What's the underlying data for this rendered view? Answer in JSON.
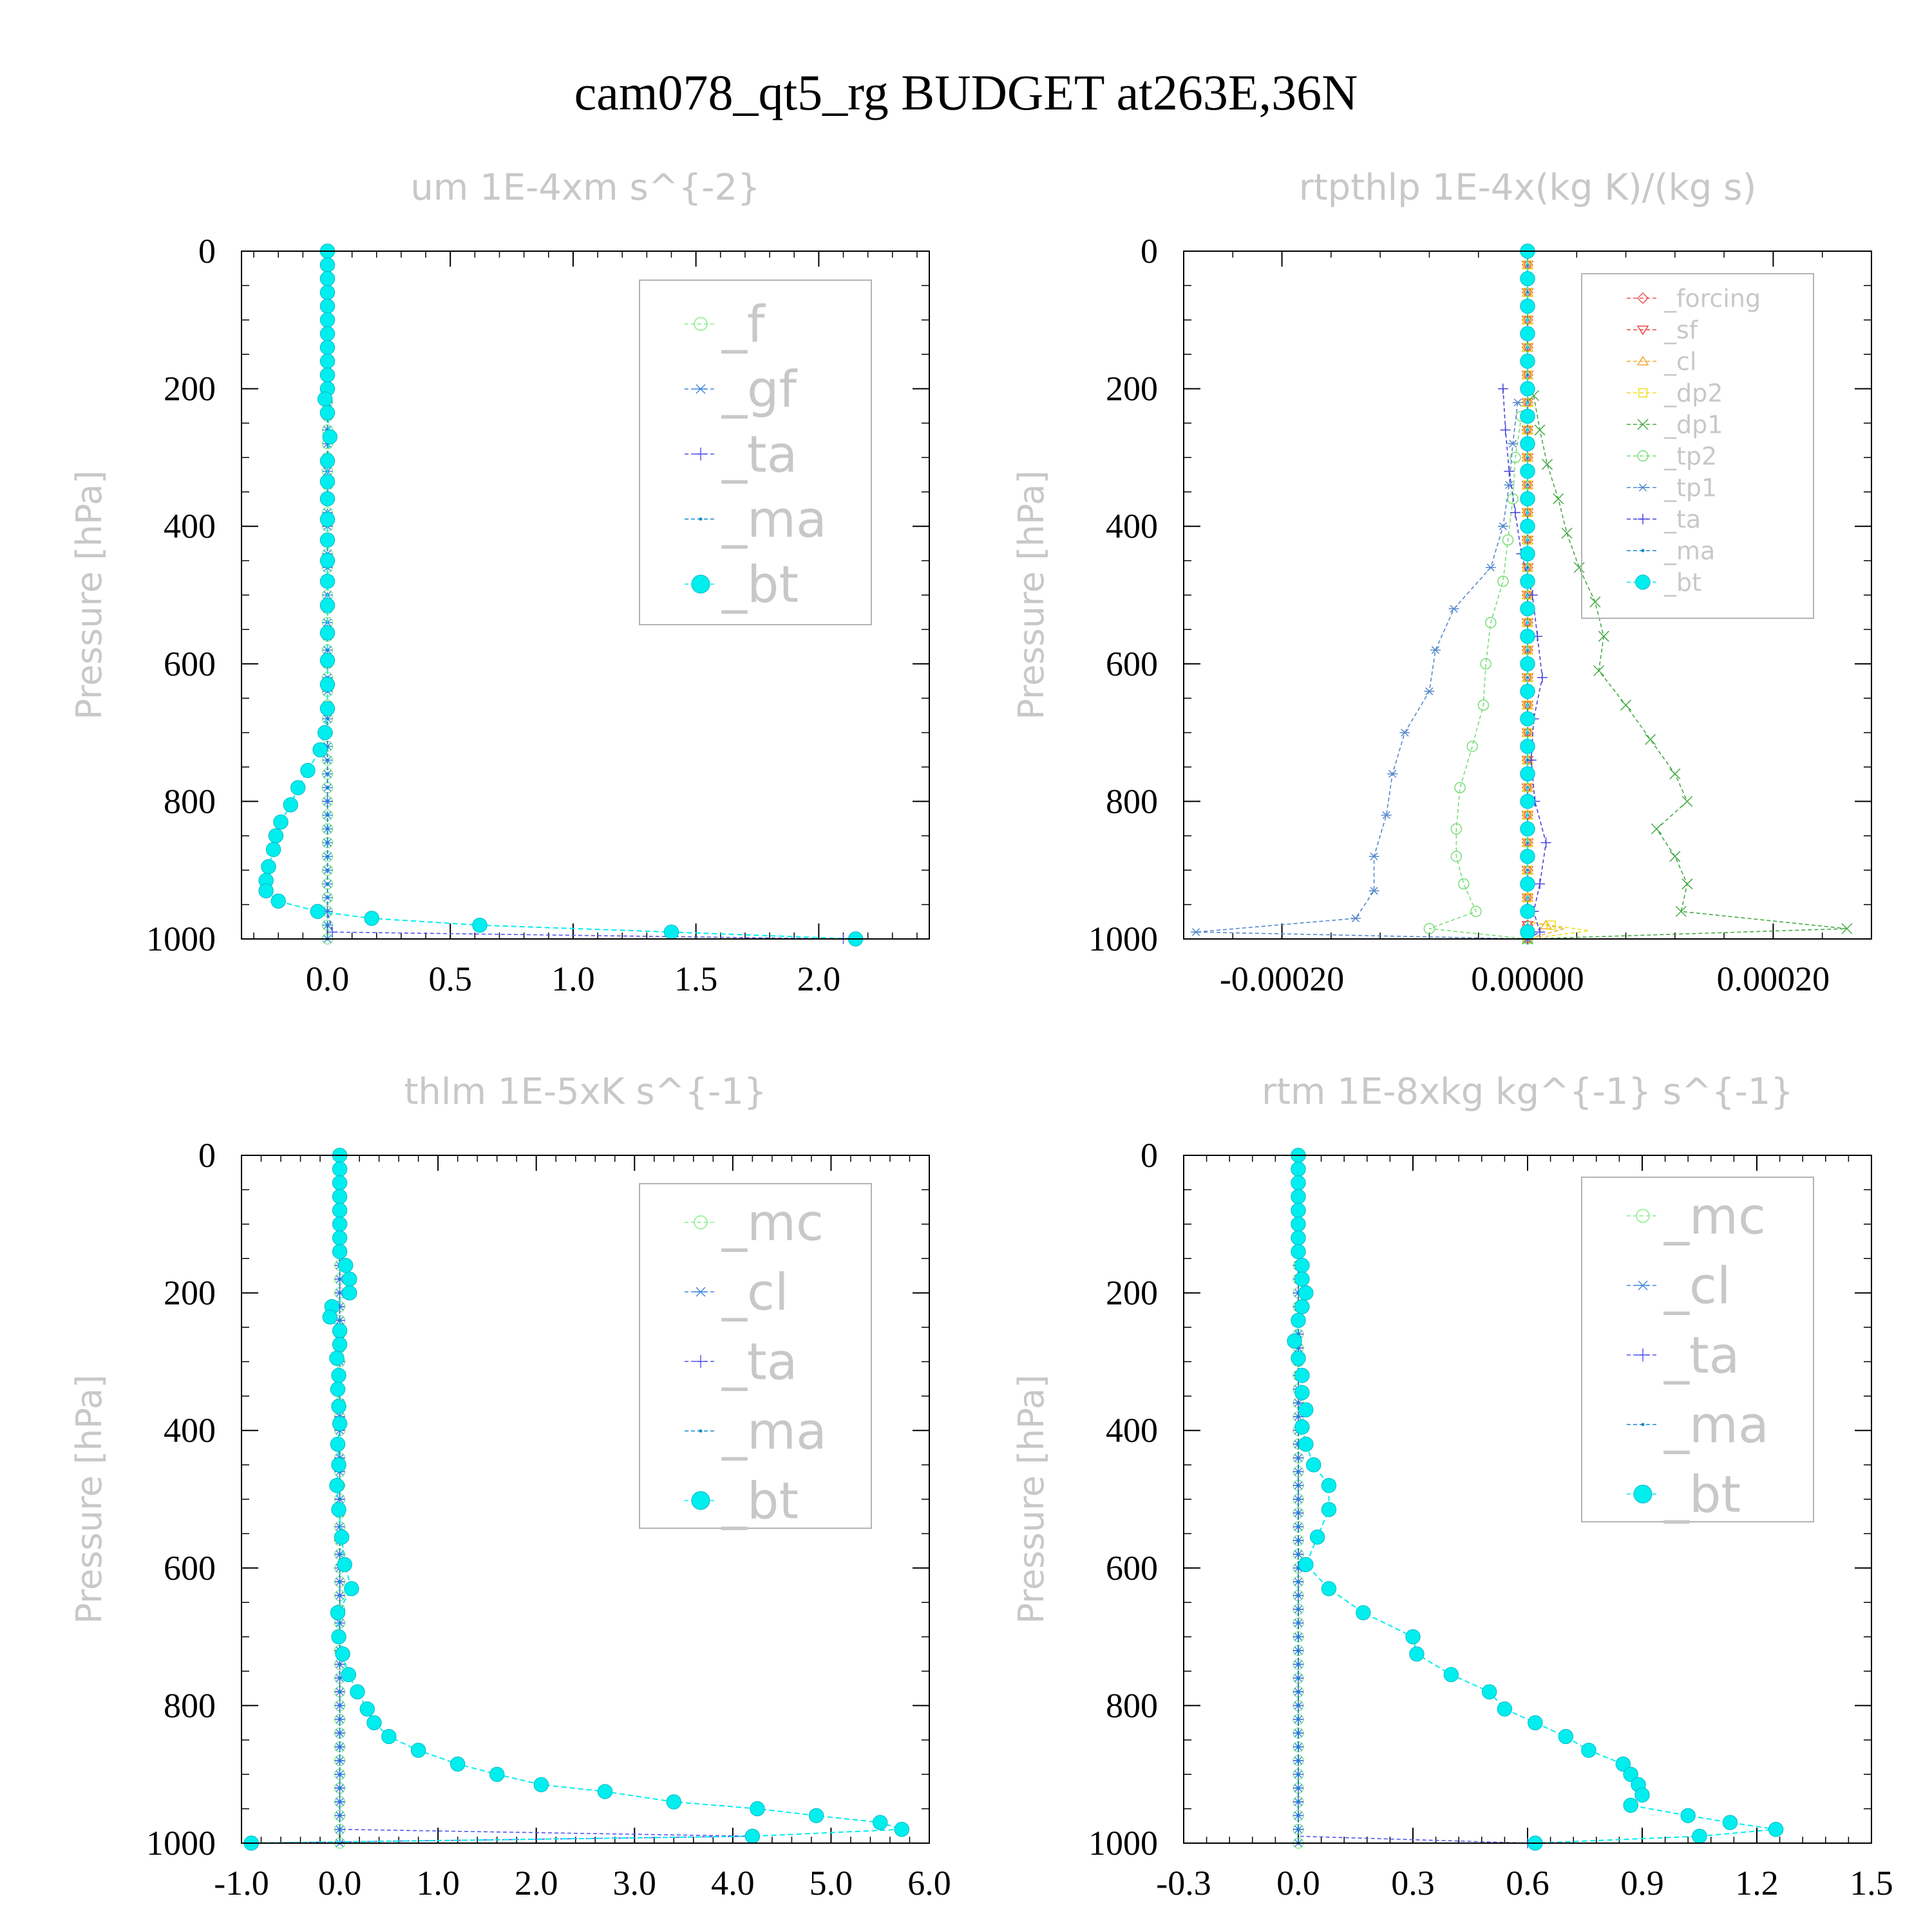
{
  "title": "cam078_qt5_rg  BUDGET at263E,36N",
  "chart_data": [
    {
      "type": "line",
      "title": "um   1E-4xm s^{-2}",
      "ylabel": "Pressure [hPa]",
      "xlim": [
        -0.35,
        2.45
      ],
      "ylim": [
        1000,
        0
      ],
      "xticks": [
        0.0,
        0.5,
        1.0,
        1.5,
        2.0
      ],
      "xtick_labels": [
        "0.0",
        "0.5",
        "1.0",
        "1.5",
        "2.0"
      ],
      "yticks": [
        0,
        200,
        400,
        600,
        800,
        1000
      ],
      "ytick_labels": [
        "0",
        "200",
        "400",
        "600",
        "800",
        "1000"
      ],
      "legend_position": "top-right",
      "series": [
        {
          "name": "_f",
          "color": "#88ee88",
          "marker": "circle-open",
          "pressure": [
            0,
            200,
            400,
            600,
            800,
            1000
          ],
          "values": [
            0,
            0,
            0,
            0,
            0,
            0
          ]
        },
        {
          "name": "_gf",
          "color": "#4488dd",
          "marker": "asterisk",
          "pressure": [
            0,
            200,
            400,
            600,
            800,
            1000
          ],
          "values": [
            0,
            0,
            0,
            0,
            0,
            0
          ]
        },
        {
          "name": "_ta",
          "color": "#5555ee",
          "marker": "plus",
          "pressure": [
            0,
            200,
            400,
            600,
            800,
            960,
            990,
            1000
          ],
          "values": [
            0,
            0,
            0,
            0,
            0,
            0,
            0.02,
            2.1
          ]
        },
        {
          "name": "_ma",
          "color": "#1188cc",
          "marker": "dot",
          "pressure": [
            0,
            200,
            400,
            600,
            800,
            1000
          ],
          "values": [
            0,
            0,
            0,
            0,
            0,
            0
          ]
        },
        {
          "name": "_bt",
          "color": "#00eeee",
          "marker": "filled-circle",
          "pressure": [
            0,
            20,
            40,
            60,
            80,
            100,
            120,
            140,
            160,
            180,
            200,
            215,
            235,
            270,
            305,
            335,
            360,
            390,
            420,
            450,
            480,
            515,
            555,
            595,
            630,
            665,
            700,
            725,
            755,
            780,
            805,
            830,
            850,
            870,
            895,
            915,
            930,
            945,
            960,
            970,
            980,
            990,
            1000
          ],
          "values": [
            0,
            0,
            0,
            0,
            0,
            0,
            0,
            0,
            0,
            0,
            0,
            -0.01,
            0,
            0.01,
            0,
            0,
            0,
            0,
            0,
            0,
            0,
            0,
            0,
            0,
            0,
            0,
            -0.01,
            -0.03,
            -0.08,
            -0.12,
            -0.15,
            -0.19,
            -0.21,
            -0.22,
            -0.24,
            -0.25,
            -0.25,
            -0.2,
            -0.04,
            0.18,
            0.62,
            1.4,
            2.15
          ]
        }
      ]
    },
    {
      "type": "line",
      "title": "rtpthlp   1E-4x(kg K)/(kg s)",
      "ylabel": "Pressure [hPa]",
      "xlim": [
        -0.00028,
        0.00028
      ],
      "ylim": [
        1000,
        0
      ],
      "xticks": [
        -0.0002,
        0.0,
        0.0002
      ],
      "xtick_labels": [
        "-0.00020",
        "0.00000",
        "0.00020"
      ],
      "yticks": [
        0,
        200,
        400,
        600,
        800,
        1000
      ],
      "ytick_labels": [
        "0",
        "200",
        "400",
        "600",
        "800",
        "1000"
      ],
      "legend_position": "top-right",
      "series": [
        {
          "name": "_forcing",
          "color": "#ee5555",
          "marker": "diamond-open",
          "pressure": [
            0,
            1000
          ],
          "values": [
            0,
            0
          ]
        },
        {
          "name": "_sf",
          "color": "#ee4444",
          "marker": "triangle-down",
          "pressure": [
            0,
            1000
          ],
          "values": [
            0,
            0
          ]
        },
        {
          "name": "_cl",
          "color": "#eeaa33",
          "marker": "triangle-up",
          "pressure": [
            0,
            975,
            985,
            1000
          ],
          "values": [
            0,
            0,
            3e-05,
            0
          ]
        },
        {
          "name": "_dp2",
          "color": "#eedd22",
          "marker": "square-open",
          "pressure": [
            0,
            975,
            988,
            1000
          ],
          "values": [
            0,
            0,
            5e-05,
            0
          ]
        },
        {
          "name": "_dp1",
          "color": "#44aa44",
          "marker": "x",
          "pressure": [
            210,
            260,
            310,
            360,
            410,
            460,
            510,
            560,
            610,
            660,
            710,
            760,
            800,
            840,
            880,
            920,
            960,
            985,
            1000
          ],
          "values": [
            5e-06,
            1e-05,
            1.6e-05,
            2.5e-05,
            3.2e-05,
            4.2e-05,
            5.5e-05,
            6.2e-05,
            5.8e-05,
            8e-05,
            0.0001,
            0.00012,
            0.00013,
            0.000105,
            0.00012,
            0.00013,
            0.000125,
            0.00026,
            0
          ]
        },
        {
          "name": "_tp2",
          "color": "#77dd77",
          "marker": "circle-open",
          "pressure": [
            240,
            300,
            360,
            420,
            480,
            540,
            600,
            660,
            720,
            780,
            840,
            880,
            920,
            960,
            985,
            1000
          ],
          "values": [
            -5e-06,
            -1e-05,
            -1.2e-05,
            -1.6e-05,
            -2e-05,
            -3e-05,
            -3.4e-05,
            -3.6e-05,
            -4.5e-05,
            -5.5e-05,
            -5.8e-05,
            -5.8e-05,
            -5.2e-05,
            -4.2e-05,
            -8e-05,
            0
          ]
        },
        {
          "name": "_tp1",
          "color": "#5588cc",
          "marker": "asterisk",
          "pressure": [
            220,
            280,
            340,
            400,
            460,
            520,
            580,
            640,
            700,
            760,
            820,
            880,
            930,
            970,
            990,
            1000
          ],
          "values": [
            -8e-06,
            -1.2e-05,
            -1.5e-05,
            -2e-05,
            -3e-05,
            -6e-05,
            -7.5e-05,
            -8e-05,
            -0.0001,
            -0.00011,
            -0.000115,
            -0.000125,
            -0.000125,
            -0.00014,
            -0.00027,
            0
          ]
        },
        {
          "name": "_ta",
          "color": "#4444dd",
          "marker": "plus",
          "pressure": [
            200,
            260,
            320,
            380,
            440,
            500,
            560,
            620,
            680,
            740,
            800,
            860,
            920,
            960,
            990,
            1000
          ],
          "values": [
            -2e-05,
            -1.8e-05,
            -1.5e-05,
            -1e-05,
            -5e-06,
            4e-06,
            8e-06,
            1.2e-05,
            5e-06,
            3e-06,
            6e-06,
            1.5e-05,
            1e-05,
            5e-06,
            1e-05,
            0
          ]
        },
        {
          "name": "_ma",
          "color": "#1188cc",
          "marker": "dot",
          "pressure": [
            0,
            1000
          ],
          "values": [
            0,
            0
          ]
        },
        {
          "name": "_bt",
          "color": "#00eeee",
          "marker": "filled-circle",
          "pressure": [
            0,
            40,
            80,
            120,
            160,
            200,
            240,
            280,
            320,
            360,
            400,
            440,
            480,
            520,
            560,
            600,
            640,
            680,
            720,
            760,
            800,
            840,
            880,
            920,
            960,
            990
          ],
          "values": [
            0,
            0,
            0,
            0,
            0,
            0,
            0,
            0,
            0,
            0,
            0,
            0,
            0,
            0,
            0,
            0,
            0,
            0,
            0,
            0,
            0,
            0,
            0,
            0,
            0,
            0
          ]
        }
      ]
    },
    {
      "type": "line",
      "title": "thlm   1E-5xK s^{-1}",
      "ylabel": "Pressure [hPa]",
      "xlim": [
        -1.0,
        6.0
      ],
      "ylim": [
        1000,
        0
      ],
      "xticks": [
        -1.0,
        0.0,
        1.0,
        2.0,
        3.0,
        4.0,
        5.0,
        6.0
      ],
      "xtick_labels": [
        "-1.0",
        "0.0",
        "1.0",
        "2.0",
        "3.0",
        "4.0",
        "5.0",
        "6.0"
      ],
      "yticks": [
        0,
        200,
        400,
        600,
        800,
        1000
      ],
      "ytick_labels": [
        "0",
        "200",
        "400",
        "600",
        "800",
        "1000"
      ],
      "legend_position": "top-right",
      "series": [
        {
          "name": "_mc",
          "color": "#88ee88",
          "marker": "circle-open",
          "pressure": [
            0,
            1000
          ],
          "values": [
            0,
            0
          ]
        },
        {
          "name": "_cl",
          "color": "#4488dd",
          "marker": "asterisk",
          "pressure": [
            0,
            1000
          ],
          "values": [
            0,
            0
          ]
        },
        {
          "name": "_ta",
          "color": "#5555ee",
          "marker": "plus",
          "pressure": [
            0,
            980,
            990,
            1000
          ],
          "values": [
            0,
            0,
            4.2,
            -0.9
          ]
        },
        {
          "name": "_ma",
          "color": "#1188cc",
          "marker": "dot",
          "pressure": [
            0,
            1000
          ],
          "values": [
            0,
            0
          ]
        },
        {
          "name": "_bt",
          "color": "#00eeee",
          "marker": "filled-circle",
          "pressure": [
            0,
            20,
            40,
            60,
            80,
            100,
            120,
            140,
            160,
            180,
            200,
            220,
            235,
            255,
            275,
            295,
            320,
            340,
            365,
            390,
            420,
            450,
            480,
            515,
            555,
            595,
            630,
            665,
            700,
            725,
            755,
            780,
            805,
            825,
            845,
            865,
            885,
            900,
            915,
            925,
            940,
            950,
            960,
            970,
            980,
            990,
            1000
          ],
          "values": [
            0,
            0,
            0,
            0,
            0,
            0,
            0,
            0,
            0.06,
            0.1,
            0.1,
            -0.08,
            -0.1,
            0,
            0,
            -0.03,
            -0.01,
            -0.02,
            -0.01,
            0,
            -0.02,
            -0.01,
            -0.03,
            -0.01,
            0.02,
            0.05,
            0.12,
            -0.02,
            -0.01,
            0.03,
            0.09,
            0.18,
            0.28,
            0.35,
            0.5,
            0.8,
            1.2,
            1.6,
            2.05,
            2.7,
            3.4,
            4.25,
            4.85,
            5.5,
            5.72,
            4.2,
            -0.9
          ]
        }
      ]
    },
    {
      "type": "line",
      "title": "rtm   1E-8xkg kg^{-1} s^{-1}",
      "ylabel": "Pressure [hPa]",
      "xlim": [
        -0.3,
        1.5
      ],
      "ylim": [
        1000,
        0
      ],
      "xticks": [
        -0.3,
        0.0,
        0.3,
        0.6,
        0.9,
        1.2,
        1.5
      ],
      "xtick_labels": [
        "-0.3",
        "0.0",
        "0.3",
        "0.6",
        "0.9",
        "1.2",
        "1.5"
      ],
      "yticks": [
        0,
        200,
        400,
        600,
        800,
        1000
      ],
      "ytick_labels": [
        "0",
        "200",
        "400",
        "600",
        "800",
        "1000"
      ],
      "legend_position": "top-right",
      "series": [
        {
          "name": "_mc",
          "color": "#88ee88",
          "marker": "circle-open",
          "pressure": [
            0,
            1000
          ],
          "values": [
            0,
            0
          ]
        },
        {
          "name": "_cl",
          "color": "#4488dd",
          "marker": "asterisk",
          "pressure": [
            0,
            1000
          ],
          "values": [
            0,
            0
          ]
        },
        {
          "name": "_ta",
          "color": "#5555ee",
          "marker": "plus",
          "pressure": [
            0,
            990,
            1000
          ],
          "values": [
            0,
            0,
            0.6
          ]
        },
        {
          "name": "_ma",
          "color": "#1188cc",
          "marker": "dot",
          "pressure": [
            0,
            1000
          ],
          "values": [
            0,
            0
          ]
        },
        {
          "name": "_bt",
          "color": "#00eeee",
          "marker": "filled-circle",
          "pressure": [
            0,
            20,
            40,
            60,
            80,
            100,
            120,
            140,
            160,
            180,
            200,
            220,
            240,
            270,
            295,
            320,
            345,
            370,
            395,
            420,
            450,
            480,
            515,
            555,
            595,
            630,
            665,
            700,
            725,
            755,
            780,
            805,
            825,
            845,
            865,
            885,
            900,
            915,
            930,
            945,
            960,
            970,
            980,
            990,
            1000
          ],
          "values": [
            0,
            0,
            0,
            0,
            0,
            0,
            0,
            0,
            0.01,
            0.01,
            0.02,
            0.01,
            0,
            -0.01,
            0,
            0.01,
            0.01,
            0.02,
            0.01,
            0.02,
            0.04,
            0.08,
            0.08,
            0.05,
            0.02,
            0.08,
            0.17,
            0.3,
            0.31,
            0.4,
            0.5,
            0.54,
            0.62,
            0.7,
            0.76,
            0.85,
            0.87,
            0.89,
            0.9,
            0.87,
            1.02,
            1.13,
            1.25,
            1.05,
            0.62
          ]
        }
      ]
    }
  ]
}
